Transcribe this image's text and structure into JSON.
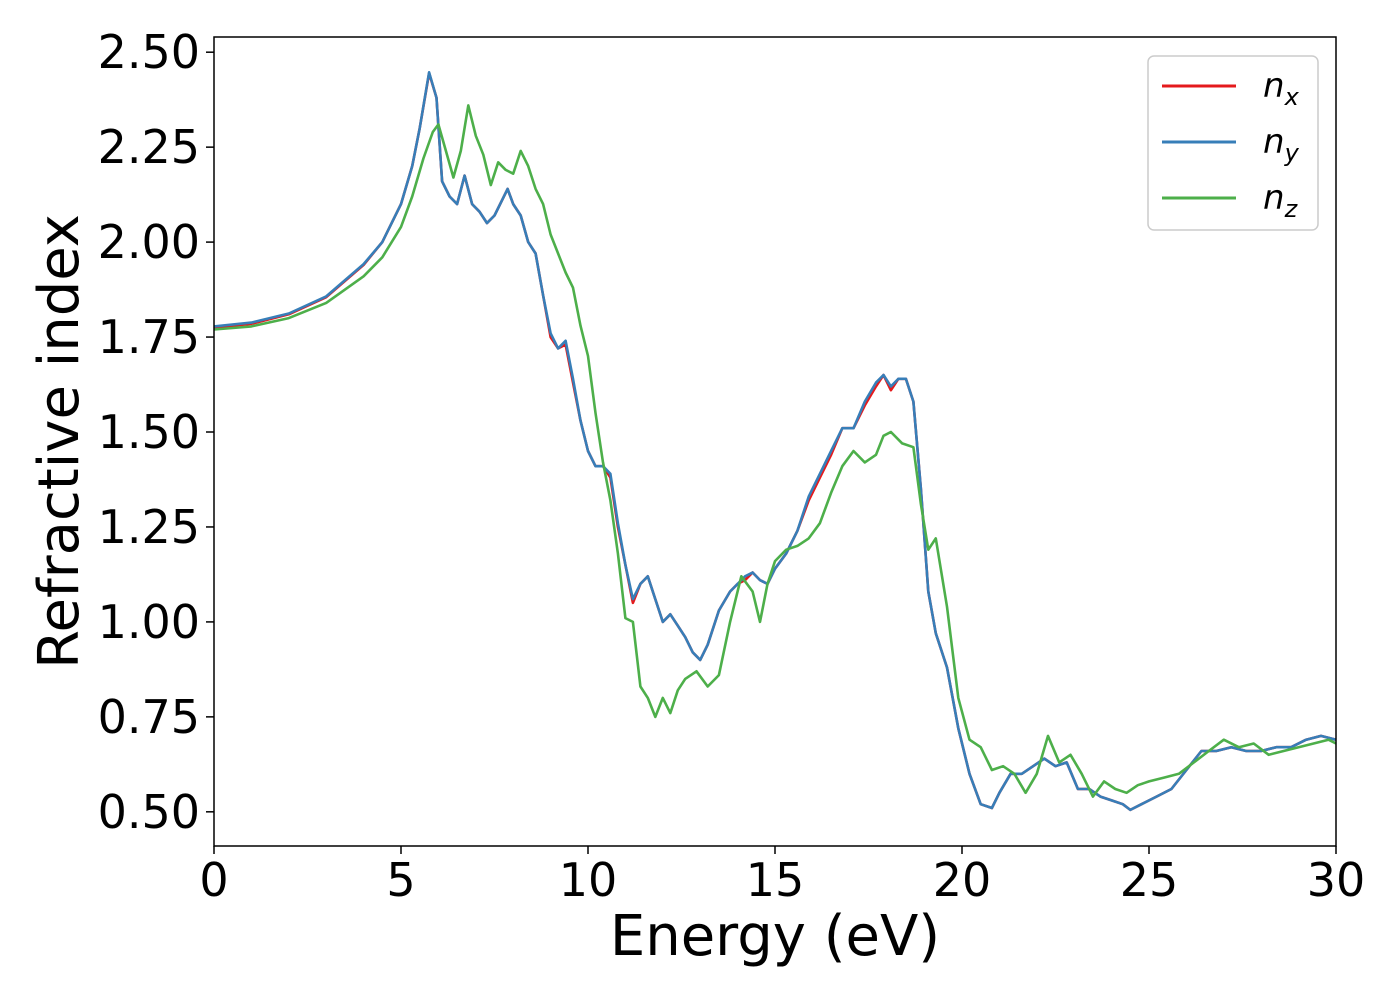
{
  "chart_data": {
    "type": "line",
    "xlabel": "Energy (eV)",
    "ylabel": "Refractive index",
    "xlim": [
      0,
      30
    ],
    "ylim": [
      0.41,
      2.54
    ],
    "xticks": [
      0,
      5,
      10,
      15,
      20,
      25,
      30
    ],
    "xtick_labels": [
      "0",
      "5",
      "10",
      "15",
      "20",
      "25",
      "30"
    ],
    "yticks": [
      0.5,
      0.75,
      1.0,
      1.25,
      1.5,
      1.75,
      2.0,
      2.25,
      2.5
    ],
    "ytick_labels": [
      "0.50",
      "0.75",
      "1.00",
      "1.25",
      "1.50",
      "1.75",
      "2.00",
      "2.25",
      "2.50"
    ],
    "grid": false,
    "legend_position": "top-right",
    "series": [
      {
        "name": "n",
        "sub": "x",
        "color": "#e41a1c",
        "x": [
          0,
          1,
          2,
          3,
          4,
          4.5,
          5,
          5.3,
          5.5,
          5.75,
          5.95,
          6.1,
          6.3,
          6.5,
          6.7,
          6.9,
          7.1,
          7.3,
          7.5,
          7.7,
          7.85,
          8.0,
          8.2,
          8.4,
          8.6,
          8.8,
          9.0,
          9.2,
          9.4,
          9.6,
          9.8,
          10.0,
          10.2,
          10.4,
          10.6,
          10.8,
          11.0,
          11.2,
          11.4,
          11.6,
          11.8,
          12.0,
          12.2,
          12.4,
          12.6,
          12.8,
          13.0,
          13.2,
          13.5,
          13.8,
          14.0,
          14.2,
          14.4,
          14.6,
          14.8,
          15.0,
          15.3,
          15.6,
          15.9,
          16.2,
          16.5,
          16.8,
          17.1,
          17.4,
          17.7,
          17.9,
          18.1,
          18.3,
          18.5,
          18.7,
          18.9,
          19.1,
          19.3,
          19.6,
          19.9,
          20.2,
          20.5,
          20.8,
          21.0,
          21.3,
          21.6,
          21.9,
          22.2,
          22.5,
          22.8,
          23.1,
          23.4,
          23.7,
          24.0,
          24.3,
          24.5,
          24.8,
          25.2,
          25.6,
          26.0,
          26.4,
          26.8,
          27.2,
          27.6,
          28.0,
          28.4,
          28.8,
          29.2,
          29.6,
          30.0
        ],
        "y": [
          1.775,
          1.785,
          1.81,
          1.855,
          1.94,
          2.0,
          2.1,
          2.2,
          2.3,
          2.445,
          2.38,
          2.16,
          2.12,
          2.1,
          2.175,
          2.1,
          2.08,
          2.05,
          2.07,
          2.11,
          2.14,
          2.1,
          2.07,
          2.0,
          1.97,
          1.86,
          1.75,
          1.72,
          1.73,
          1.63,
          1.53,
          1.45,
          1.41,
          1.41,
          1.38,
          1.25,
          1.15,
          1.05,
          1.1,
          1.12,
          1.06,
          1.0,
          1.02,
          0.99,
          0.96,
          0.92,
          0.9,
          0.94,
          1.03,
          1.08,
          1.1,
          1.11,
          1.13,
          1.11,
          1.1,
          1.14,
          1.18,
          1.24,
          1.32,
          1.38,
          1.44,
          1.51,
          1.51,
          1.57,
          1.62,
          1.65,
          1.61,
          1.64,
          1.64,
          1.58,
          1.35,
          1.08,
          0.97,
          0.88,
          0.72,
          0.6,
          0.52,
          0.51,
          0.55,
          0.6,
          0.6,
          0.62,
          0.64,
          0.62,
          0.63,
          0.56,
          0.56,
          0.54,
          0.53,
          0.52,
          0.505,
          0.52,
          0.54,
          0.56,
          0.61,
          0.66,
          0.66,
          0.67,
          0.66,
          0.66,
          0.67,
          0.67,
          0.69,
          0.7,
          0.69
        ]
      },
      {
        "name": "n",
        "sub": "y",
        "color": "#377eb8",
        "x": [
          0,
          1,
          2,
          3,
          4,
          4.5,
          5,
          5.3,
          5.5,
          5.75,
          5.95,
          6.1,
          6.3,
          6.5,
          6.7,
          6.9,
          7.1,
          7.3,
          7.5,
          7.7,
          7.85,
          8.0,
          8.2,
          8.4,
          8.6,
          8.8,
          9.0,
          9.2,
          9.4,
          9.6,
          9.8,
          10.0,
          10.2,
          10.4,
          10.6,
          10.8,
          11.0,
          11.2,
          11.4,
          11.6,
          11.8,
          12.0,
          12.2,
          12.4,
          12.6,
          12.8,
          13.0,
          13.2,
          13.5,
          13.8,
          14.0,
          14.2,
          14.4,
          14.6,
          14.8,
          15.0,
          15.3,
          15.6,
          15.9,
          16.2,
          16.5,
          16.8,
          17.1,
          17.4,
          17.7,
          17.9,
          18.1,
          18.3,
          18.5,
          18.7,
          18.9,
          19.1,
          19.3,
          19.6,
          19.9,
          20.2,
          20.5,
          20.8,
          21.0,
          21.3,
          21.6,
          21.9,
          22.2,
          22.5,
          22.8,
          23.1,
          23.4,
          23.7,
          24.0,
          24.3,
          24.5,
          24.8,
          25.2,
          25.6,
          26.0,
          26.4,
          26.8,
          27.2,
          27.6,
          28.0,
          28.4,
          28.8,
          29.2,
          29.6,
          30.0
        ],
        "y": [
          1.778,
          1.788,
          1.812,
          1.857,
          1.942,
          2.0,
          2.1,
          2.2,
          2.3,
          2.447,
          2.38,
          2.16,
          2.12,
          2.1,
          2.175,
          2.1,
          2.08,
          2.05,
          2.07,
          2.11,
          2.14,
          2.1,
          2.07,
          2.0,
          1.97,
          1.86,
          1.76,
          1.72,
          1.74,
          1.64,
          1.53,
          1.45,
          1.41,
          1.41,
          1.39,
          1.26,
          1.15,
          1.06,
          1.1,
          1.12,
          1.06,
          1.0,
          1.02,
          0.99,
          0.96,
          0.92,
          0.9,
          0.94,
          1.03,
          1.08,
          1.1,
          1.12,
          1.13,
          1.11,
          1.1,
          1.14,
          1.18,
          1.24,
          1.33,
          1.39,
          1.45,
          1.51,
          1.51,
          1.58,
          1.63,
          1.65,
          1.62,
          1.64,
          1.64,
          1.58,
          1.35,
          1.08,
          0.97,
          0.88,
          0.72,
          0.6,
          0.52,
          0.51,
          0.55,
          0.6,
          0.6,
          0.62,
          0.64,
          0.62,
          0.63,
          0.56,
          0.56,
          0.54,
          0.53,
          0.52,
          0.505,
          0.52,
          0.54,
          0.56,
          0.61,
          0.66,
          0.66,
          0.67,
          0.66,
          0.66,
          0.67,
          0.67,
          0.69,
          0.7,
          0.69
        ]
      },
      {
        "name": "n",
        "sub": "z",
        "color": "#4daf4a",
        "x": [
          0,
          1,
          2,
          3,
          4,
          4.5,
          5,
          5.3,
          5.6,
          5.85,
          6.0,
          6.2,
          6.4,
          6.6,
          6.8,
          7.0,
          7.2,
          7.4,
          7.6,
          7.8,
          8.0,
          8.2,
          8.4,
          8.6,
          8.8,
          9.0,
          9.2,
          9.4,
          9.6,
          9.8,
          10.0,
          10.2,
          10.4,
          10.6,
          10.8,
          11.0,
          11.2,
          11.4,
          11.6,
          11.8,
          12.0,
          12.2,
          12.4,
          12.6,
          12.9,
          13.2,
          13.5,
          13.8,
          14.1,
          14.4,
          14.6,
          14.8,
          15.0,
          15.3,
          15.6,
          15.9,
          16.2,
          16.5,
          16.8,
          17.1,
          17.4,
          17.7,
          17.9,
          18.1,
          18.4,
          18.7,
          18.9,
          19.1,
          19.3,
          19.6,
          19.9,
          20.2,
          20.5,
          20.8,
          21.1,
          21.4,
          21.7,
          22.0,
          22.3,
          22.6,
          22.9,
          23.2,
          23.5,
          23.8,
          24.1,
          24.4,
          24.7,
          25.0,
          25.4,
          25.8,
          26.2,
          26.6,
          27.0,
          27.4,
          27.8,
          28.2,
          28.6,
          29.0,
          29.4,
          29.8,
          30.0
        ],
        "y": [
          1.77,
          1.778,
          1.8,
          1.84,
          1.91,
          1.96,
          2.04,
          2.12,
          2.22,
          2.29,
          2.31,
          2.24,
          2.17,
          2.24,
          2.36,
          2.28,
          2.23,
          2.15,
          2.21,
          2.19,
          2.18,
          2.24,
          2.2,
          2.14,
          2.1,
          2.02,
          1.97,
          1.92,
          1.88,
          1.78,
          1.7,
          1.55,
          1.42,
          1.32,
          1.18,
          1.01,
          1.0,
          0.83,
          0.8,
          0.75,
          0.8,
          0.76,
          0.82,
          0.85,
          0.87,
          0.83,
          0.86,
          1.0,
          1.12,
          1.08,
          1.0,
          1.1,
          1.16,
          1.19,
          1.2,
          1.22,
          1.26,
          1.34,
          1.41,
          1.45,
          1.42,
          1.44,
          1.49,
          1.5,
          1.47,
          1.46,
          1.31,
          1.19,
          1.22,
          1.04,
          0.8,
          0.69,
          0.67,
          0.61,
          0.62,
          0.6,
          0.55,
          0.6,
          0.7,
          0.63,
          0.65,
          0.6,
          0.54,
          0.58,
          0.56,
          0.55,
          0.57,
          0.58,
          0.59,
          0.6,
          0.63,
          0.66,
          0.69,
          0.67,
          0.68,
          0.65,
          0.66,
          0.67,
          0.68,
          0.69,
          0.68
        ]
      }
    ]
  }
}
